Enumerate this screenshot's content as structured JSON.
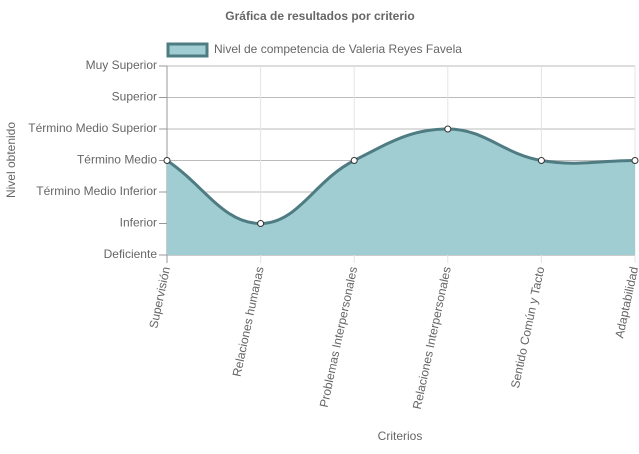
{
  "chart_data": {
    "type": "line",
    "title": "Gráfica de resultados por criterio",
    "x_label": "Criterios",
    "y_label": "Nivel obtenido",
    "categories": [
      "Supervisión",
      "Relaciones humanas",
      "Problemas Interpersonales",
      "Relaciones Interpersonales",
      "Sentido Común y Tacto",
      "Adaptabilidad"
    ],
    "series": [
      {
        "name": "Nivel de competencia de Valeria Reyes Favela",
        "color": "#4e7c82",
        "fill": "#a0cdd1",
        "values": [
          3,
          1,
          3,
          4,
          3,
          3
        ]
      }
    ],
    "ylim": [
      0,
      6
    ],
    "yticks": [
      {
        "value": 0,
        "label": "Deficiente"
      },
      {
        "value": 1,
        "label": "Inferior"
      },
      {
        "value": 2,
        "label": "Término Medio Inferior"
      },
      {
        "value": 3,
        "label": "Término Medio"
      },
      {
        "value": 4,
        "label": "Término Medio Superior"
      },
      {
        "value": 5,
        "label": "Superior"
      },
      {
        "value": 6,
        "label": "Muy Superior"
      }
    ],
    "grid": true,
    "legend": "top"
  }
}
